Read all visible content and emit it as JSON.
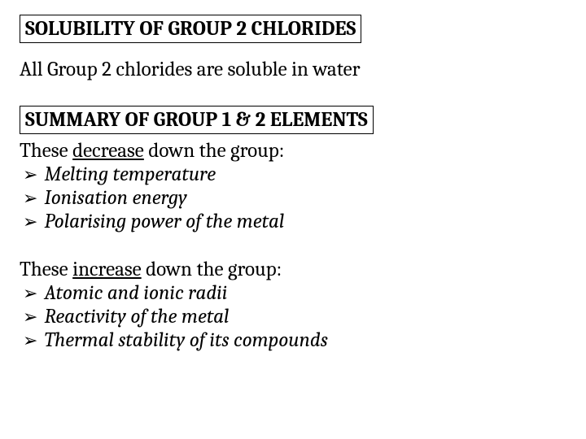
{
  "heading1": "SOLUBILITY OF GROUP 2 CHLORIDES",
  "body1": "All Group 2 chlorides are soluble in water",
  "heading2": "SUMMARY OF GROUP 1 & 2 ELEMENTS",
  "decrease": {
    "prefix": "These ",
    "underlined": "decrease",
    "suffix": " down the group:",
    "items": [
      "Melting temperature",
      "Ionisation energy",
      "Polarising power of the metal"
    ]
  },
  "increase": {
    "prefix": "These ",
    "underlined": "increase",
    "suffix": " down the group:",
    "items": [
      "Atomic and ionic radii",
      "Reactivity of the metal",
      "Thermal stability of its compounds"
    ]
  },
  "colors": {
    "background": "#ffffff",
    "text": "#000000",
    "border": "#000000"
  },
  "font": {
    "family": "Cambria, Georgia, serif",
    "heading_size_pt": 19,
    "body_size_pt": 19
  }
}
